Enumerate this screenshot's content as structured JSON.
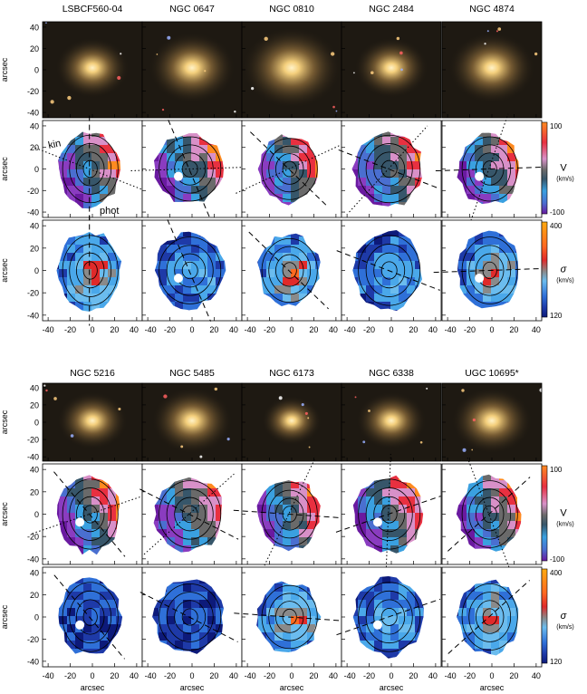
{
  "figure": {
    "blocks": [
      {
        "galaxies": [
          "LSBCF560-04",
          "NGC 0647",
          "NGC 0810",
          "NGC 2484",
          "NGC 4874"
        ],
        "xticks": [
          -40,
          -20,
          0,
          20,
          40
        ],
        "xlabel": "",
        "annotations": {
          "kin": "kin",
          "phot": "phot"
        }
      },
      {
        "galaxies": [
          "NGC 5216",
          "NGC 5485",
          "NGC 6173",
          "NGC 6338",
          "UGC 10695*"
        ],
        "xticks": [
          -40,
          -20,
          0,
          20,
          40
        ],
        "xlabel": "arcsec"
      }
    ],
    "row_ylabel": "arcsec",
    "yticks": [
      40,
      20,
      0,
      -20,
      -40
    ],
    "colorbars": {
      "velocity": {
        "top": "100",
        "bottom": "-100",
        "symbol": "V",
        "unit": "(km/s)"
      },
      "dispersion": {
        "top": "400",
        "bottom": "120",
        "symbol": "σ",
        "unit": "(km/s)"
      }
    },
    "colors": {
      "image_bg": "#1e1912",
      "galaxy_core": "#f4cf7c",
      "vel_colors": [
        "#6a1aa0",
        "#8a3cc0",
        "#4a6fd0",
        "#3aa0e0",
        "#37566a",
        "#6a6a6a",
        "#d890c8",
        "#e83040",
        "#ff8a20"
      ],
      "sig_colors": [
        "#0d1a7a",
        "#1e3aa8",
        "#2f70d8",
        "#4aa8ea",
        "#6bbcee",
        "#8a8a8a",
        "#e02a2a",
        "#ff6a20",
        "#ffaa10"
      ]
    }
  }
}
